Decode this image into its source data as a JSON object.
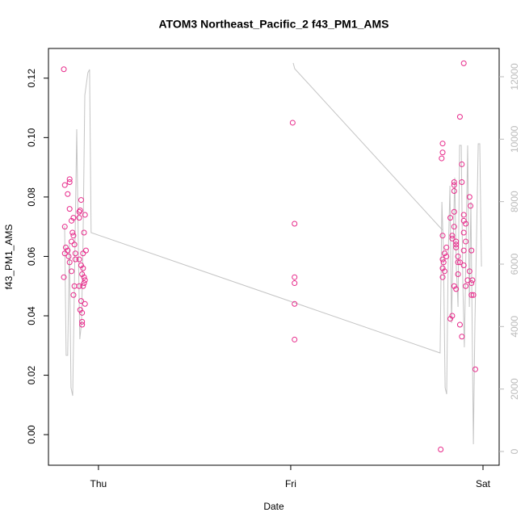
{
  "chart_data": {
    "type": "scatter",
    "title": "ATOM3 Northeast_Pacific_2 f43_PM1_AMS",
    "x_label": "Date",
    "y_label": "f43_PM1_AMS",
    "xlim": [
      -0.26,
      2.084
    ],
    "xticks": [
      {
        "value": 0,
        "label": "Thu"
      },
      {
        "value": 1,
        "label": "Fri"
      },
      {
        "value": 2,
        "label": "Sat"
      }
    ],
    "ylim": [
      -0.0103,
      0.13
    ],
    "yticks": [
      {
        "value": 0,
        "label": "0.00"
      },
      {
        "value": 0.02,
        "label": "0.02"
      },
      {
        "value": 0.04,
        "label": "0.04"
      },
      {
        "value": 0.06,
        "label": "0.06"
      },
      {
        "value": 0.08,
        "label": "0.08"
      },
      {
        "value": 0.1,
        "label": "0.10"
      },
      {
        "value": 0.12,
        "label": "0.12"
      }
    ],
    "y2lim": [
      -440,
      12905
    ],
    "y2ticks": [
      0,
      2000,
      4000,
      6000,
      8000,
      10000,
      12000
    ],
    "y2tick_color": "#bbbbbb",
    "series": [
      {
        "type": "scatter",
        "color": "#e7298a",
        "x": [
          -0.18,
          -0.175,
          -0.175,
          -0.17,
          -0.175,
          -0.18,
          -0.16,
          -0.15,
          -0.15,
          -0.15,
          -0.14,
          -0.16,
          -0.155,
          -0.15,
          -0.14,
          -0.135,
          -0.13,
          -0.13,
          -0.14,
          -0.125,
          -0.12,
          -0.125,
          -0.13,
          -0.12,
          -0.1,
          -0.095,
          -0.1,
          -0.09,
          -0.1,
          -0.09,
          -0.085,
          -0.1,
          -0.09,
          -0.095,
          -0.085,
          -0.085,
          -0.085,
          -0.08,
          -0.075,
          -0.07,
          -0.075,
          -0.07,
          -0.07,
          -0.075,
          -0.065,
          -0.08,
          -0.08,
          1.01,
          1.02,
          1.02,
          1.02,
          1.02,
          1.02,
          1.78,
          1.79,
          1.79,
          1.79,
          1.785,
          1.79,
          1.795,
          1.79,
          1.79,
          1.8,
          1.81,
          1.81,
          1.8,
          1.83,
          1.83,
          1.84,
          1.85,
          1.85,
          1.85,
          1.85,
          1.85,
          1.84,
          1.84,
          1.86,
          1.86,
          1.86,
          1.87,
          1.85,
          1.86,
          1.87,
          1.87,
          1.88,
          1.89,
          1.88,
          1.89,
          1.89,
          1.9,
          1.9,
          1.9,
          1.91,
          1.9,
          1.9,
          1.91,
          1.92,
          1.93,
          1.93,
          1.935,
          1.94,
          1.94,
          1.945,
          1.94,
          1.95,
          1.96,
          1.9,
          1.88,
          1.91
        ],
        "values": [
          0.123,
          0.084,
          0.07,
          0.063,
          0.061,
          0.053,
          0.081,
          0.086,
          0.085,
          0.076,
          0.072,
          0.062,
          0.06,
          0.058,
          0.055,
          0.068,
          0.067,
          0.073,
          0.065,
          0.064,
          0.059,
          0.05,
          0.047,
          0.061,
          0.075,
          0.0755,
          0.073,
          0.079,
          0.059,
          0.057,
          0.054,
          0.05,
          0.045,
          0.042,
          0.041,
          0.038,
          0.037,
          0.056,
          0.053,
          0.052,
          0.051,
          0.044,
          0.074,
          0.068,
          0.062,
          0.05,
          0.061,
          0.105,
          0.071,
          0.053,
          0.051,
          0.044,
          0.032,
          -0.005,
          0.067,
          0.095,
          0.098,
          0.093,
          0.059,
          0.058,
          0.056,
          0.053,
          0.061,
          0.06,
          0.063,
          0.055,
          0.073,
          0.039,
          0.04,
          0.07,
          0.084,
          0.085,
          0.082,
          0.075,
          0.067,
          0.066,
          0.065,
          0.064,
          0.063,
          0.06,
          0.05,
          0.049,
          0.058,
          0.054,
          0.037,
          0.033,
          0.107,
          0.091,
          0.085,
          0.074,
          0.072,
          0.068,
          0.071,
          0.062,
          0.057,
          0.05,
          0.052,
          0.055,
          0.08,
          0.077,
          0.062,
          0.051,
          0.052,
          0.047,
          0.047,
          0.022,
          0.125,
          0.058,
          0.065
        ]
      },
      {
        "type": "line",
        "axis": "y2",
        "color": "#c4c4c4",
        "x": [
          -0.176,
          -0.168,
          -0.16,
          -0.151,
          -0.143,
          -0.134,
          -0.122,
          -0.113,
          -0.105,
          -0.097,
          -0.088,
          -0.08,
          -0.071,
          -0.055,
          -0.046,
          -0.038,
          1.777,
          1.786,
          1.794,
          1.803,
          1.811,
          1.819,
          1.828,
          1.836,
          1.845,
          1.853,
          1.861,
          1.87,
          1.878,
          1.887,
          1.895,
          1.903,
          1.912,
          1.92,
          1.929,
          1.937,
          1.95,
          1.958,
          1.966,
          1.975,
          1.983,
          1.992,
          null,
          1.013,
          1.021,
          1.79
        ],
        "values": [
          7215,
          3077,
          3077,
          6698,
          2043,
          1784,
          6698,
          10318,
          6698,
          3595,
          4112,
          6698,
          11404,
          12128,
          12232,
          7008,
          3155,
          7991,
          6439,
          2043,
          1836,
          6181,
          8508,
          4112,
          6698,
          8767,
          5922,
          4629,
          9801,
          9801,
          5405,
          3336,
          6698,
          9801,
          4629,
          7991,
          233,
          4112,
          6698,
          9853,
          9853,
          5922,
          null,
          12439,
          12257,
          7086
        ]
      }
    ]
  }
}
